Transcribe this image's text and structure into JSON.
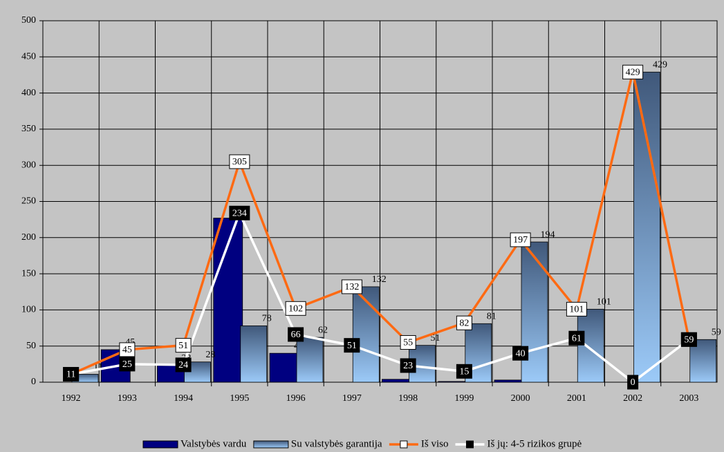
{
  "chart_data": {
    "type": "bar",
    "categories": [
      "1992",
      "1993",
      "1994",
      "1995",
      "1996",
      "1997",
      "1998",
      "1999",
      "2000",
      "2001",
      "2002",
      "2003"
    ],
    "series": [
      {
        "name": "Valstybės vardu",
        "type": "bar",
        "color": "#000080",
        "values": [
          null,
          45,
          23,
          227,
          40,
          null,
          4,
          1,
          3,
          null,
          null,
          null
        ]
      },
      {
        "name": "Su valstybės garantija",
        "type": "bar",
        "color": "#9ccaf8",
        "values": [
          11,
          null,
          28,
          78,
          62,
          132,
          51,
          81,
          194,
          101,
          429,
          59
        ]
      },
      {
        "name": "Iš viso",
        "type": "line",
        "color": "#ff6a13",
        "values": [
          11,
          45,
          51,
          305,
          102,
          132,
          55,
          82,
          197,
          101,
          429,
          59
        ]
      },
      {
        "name": "Iš jų: 4-5 rizikos grupė",
        "type": "line",
        "color": "#ffffff",
        "values": [
          11,
          25,
          24,
          234,
          66,
          51,
          23,
          15,
          40,
          61,
          0,
          59
        ]
      }
    ],
    "ylim": [
      0,
      500
    ],
    "yticks": [
      0,
      50,
      100,
      150,
      200,
      250,
      300,
      350,
      400,
      450,
      500
    ],
    "grid": true
  }
}
